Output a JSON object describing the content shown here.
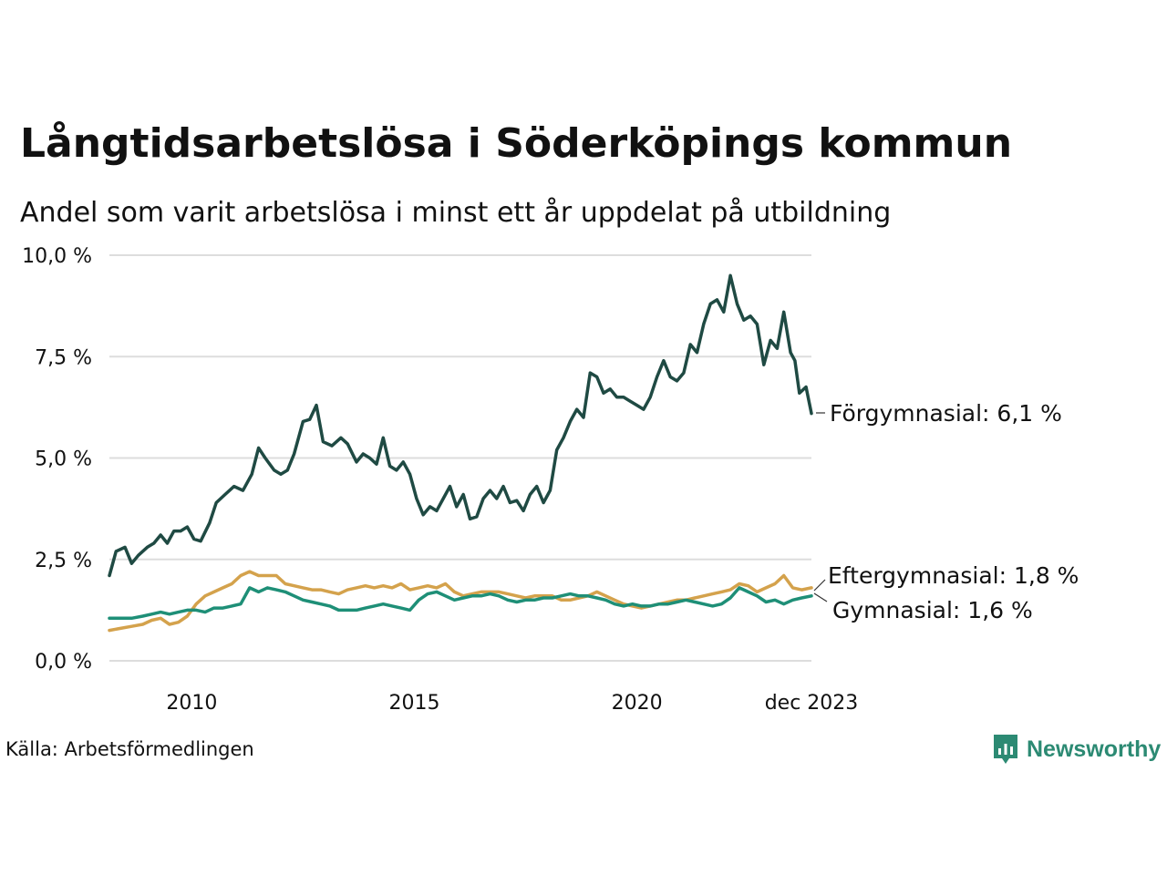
{
  "header": {
    "title": "Långtidsarbetslösa i Söderköpings kommun",
    "subtitle": "Andel som varit arbetslösa i minst ett år uppdelat på utbildning"
  },
  "footer": {
    "source": "Källa: Arbetsförmedlingen",
    "brand": "Newsworthy",
    "brand_color": "#2c8a73"
  },
  "chart_data": {
    "type": "line",
    "x_range": [
      2008.15,
      2023.92
    ],
    "ylim": [
      0,
      10
    ],
    "yticks": [
      0,
      2.5,
      5,
      7.5,
      10
    ],
    "ytick_labels": [
      "0,0 %",
      "2,5 %",
      "5,0 %",
      "7,5 %",
      "10,0 %"
    ],
    "xticks": [
      2010,
      2015,
      2020,
      2023.92
    ],
    "xtick_labels": [
      "2010",
      "2015",
      "2020",
      "dec 2023"
    ],
    "grid": true,
    "series": [
      {
        "name": "Förgymnasial",
        "label": "Förgymnasial: 6,1 %",
        "color": "#1f4a43",
        "points": [
          [
            2008.15,
            2.1
          ],
          [
            2008.3,
            2.7
          ],
          [
            2008.5,
            2.8
          ],
          [
            2008.65,
            2.4
          ],
          [
            2008.8,
            2.6
          ],
          [
            2009.0,
            2.8
          ],
          [
            2009.15,
            2.9
          ],
          [
            2009.3,
            3.1
          ],
          [
            2009.45,
            2.9
          ],
          [
            2009.6,
            3.2
          ],
          [
            2009.75,
            3.2
          ],
          [
            2009.9,
            3.3
          ],
          [
            2010.05,
            3.0
          ],
          [
            2010.2,
            2.95
          ],
          [
            2010.4,
            3.4
          ],
          [
            2010.55,
            3.9
          ],
          [
            2010.75,
            4.1
          ],
          [
            2010.95,
            4.3
          ],
          [
            2011.15,
            4.2
          ],
          [
            2011.35,
            4.6
          ],
          [
            2011.5,
            5.25
          ],
          [
            2011.65,
            5.0
          ],
          [
            2011.85,
            4.7
          ],
          [
            2012.0,
            4.6
          ],
          [
            2012.15,
            4.7
          ],
          [
            2012.3,
            5.1
          ],
          [
            2012.5,
            5.9
          ],
          [
            2012.65,
            5.95
          ],
          [
            2012.8,
            6.3
          ],
          [
            2012.95,
            5.4
          ],
          [
            2013.15,
            5.3
          ],
          [
            2013.35,
            5.5
          ],
          [
            2013.5,
            5.35
          ],
          [
            2013.7,
            4.9
          ],
          [
            2013.85,
            5.1
          ],
          [
            2014.0,
            5.0
          ],
          [
            2014.15,
            4.85
          ],
          [
            2014.3,
            5.5
          ],
          [
            2014.45,
            4.8
          ],
          [
            2014.6,
            4.7
          ],
          [
            2014.75,
            4.9
          ],
          [
            2014.9,
            4.6
          ],
          [
            2015.05,
            4.0
          ],
          [
            2015.2,
            3.6
          ],
          [
            2015.35,
            3.8
          ],
          [
            2015.5,
            3.7
          ],
          [
            2015.65,
            4.0
          ],
          [
            2015.8,
            4.3
          ],
          [
            2015.95,
            3.8
          ],
          [
            2016.1,
            4.1
          ],
          [
            2016.25,
            3.5
          ],
          [
            2016.4,
            3.55
          ],
          [
            2016.55,
            4.0
          ],
          [
            2016.7,
            4.2
          ],
          [
            2016.85,
            4.0
          ],
          [
            2017.0,
            4.3
          ],
          [
            2017.15,
            3.9
          ],
          [
            2017.3,
            3.95
          ],
          [
            2017.45,
            3.7
          ],
          [
            2017.6,
            4.1
          ],
          [
            2017.75,
            4.3
          ],
          [
            2017.9,
            3.9
          ],
          [
            2018.05,
            4.2
          ],
          [
            2018.2,
            5.2
          ],
          [
            2018.35,
            5.5
          ],
          [
            2018.5,
            5.9
          ],
          [
            2018.65,
            6.2
          ],
          [
            2018.8,
            6.0
          ],
          [
            2018.95,
            7.1
          ],
          [
            2019.1,
            7.0
          ],
          [
            2019.25,
            6.6
          ],
          [
            2019.4,
            6.7
          ],
          [
            2019.55,
            6.5
          ],
          [
            2019.7,
            6.5
          ],
          [
            2019.85,
            6.4
          ],
          [
            2020.0,
            6.3
          ],
          [
            2020.15,
            6.2
          ],
          [
            2020.3,
            6.5
          ],
          [
            2020.45,
            7.0
          ],
          [
            2020.6,
            7.4
          ],
          [
            2020.75,
            7.0
          ],
          [
            2020.9,
            6.9
          ],
          [
            2021.05,
            7.1
          ],
          [
            2021.2,
            7.8
          ],
          [
            2021.35,
            7.6
          ],
          [
            2021.5,
            8.3
          ],
          [
            2021.65,
            8.8
          ],
          [
            2021.8,
            8.9
          ],
          [
            2021.95,
            8.6
          ],
          [
            2022.1,
            9.5
          ],
          [
            2022.25,
            8.8
          ],
          [
            2022.4,
            8.4
          ],
          [
            2022.55,
            8.5
          ],
          [
            2022.7,
            8.3
          ],
          [
            2022.85,
            7.3
          ],
          [
            2023.0,
            7.9
          ],
          [
            2023.15,
            7.7
          ],
          [
            2023.3,
            8.6
          ],
          [
            2023.45,
            7.6
          ],
          [
            2023.55,
            7.4
          ],
          [
            2023.65,
            6.6
          ],
          [
            2023.8,
            6.75
          ],
          [
            2023.92,
            6.1
          ]
        ]
      },
      {
        "name": "Eftergymnasial",
        "label": "Eftergymnasial: 1,8 %",
        "color": "#d4a24c",
        "points": [
          [
            2008.15,
            0.75
          ],
          [
            2008.4,
            0.8
          ],
          [
            2008.65,
            0.85
          ],
          [
            2008.9,
            0.9
          ],
          [
            2009.1,
            1.0
          ],
          [
            2009.3,
            1.05
          ],
          [
            2009.5,
            0.9
          ],
          [
            2009.7,
            0.95
          ],
          [
            2009.9,
            1.1
          ],
          [
            2010.1,
            1.4
          ],
          [
            2010.3,
            1.6
          ],
          [
            2010.5,
            1.7
          ],
          [
            2010.7,
            1.8
          ],
          [
            2010.9,
            1.9
          ],
          [
            2011.1,
            2.1
          ],
          [
            2011.3,
            2.2
          ],
          [
            2011.5,
            2.1
          ],
          [
            2011.7,
            2.1
          ],
          [
            2011.9,
            2.1
          ],
          [
            2012.1,
            1.9
          ],
          [
            2012.3,
            1.85
          ],
          [
            2012.5,
            1.8
          ],
          [
            2012.7,
            1.75
          ],
          [
            2012.9,
            1.75
          ],
          [
            2013.1,
            1.7
          ],
          [
            2013.3,
            1.65
          ],
          [
            2013.5,
            1.75
          ],
          [
            2013.7,
            1.8
          ],
          [
            2013.9,
            1.85
          ],
          [
            2014.1,
            1.8
          ],
          [
            2014.3,
            1.85
          ],
          [
            2014.5,
            1.8
          ],
          [
            2014.7,
            1.9
          ],
          [
            2014.9,
            1.75
          ],
          [
            2015.1,
            1.8
          ],
          [
            2015.3,
            1.85
          ],
          [
            2015.5,
            1.8
          ],
          [
            2015.7,
            1.9
          ],
          [
            2015.9,
            1.7
          ],
          [
            2016.1,
            1.6
          ],
          [
            2016.3,
            1.65
          ],
          [
            2016.5,
            1.7
          ],
          [
            2016.7,
            1.7
          ],
          [
            2016.9,
            1.7
          ],
          [
            2017.1,
            1.65
          ],
          [
            2017.3,
            1.6
          ],
          [
            2017.5,
            1.55
          ],
          [
            2017.7,
            1.6
          ],
          [
            2017.9,
            1.6
          ],
          [
            2018.1,
            1.6
          ],
          [
            2018.3,
            1.5
          ],
          [
            2018.5,
            1.5
          ],
          [
            2018.7,
            1.55
          ],
          [
            2018.9,
            1.6
          ],
          [
            2019.1,
            1.7
          ],
          [
            2019.3,
            1.6
          ],
          [
            2019.5,
            1.5
          ],
          [
            2019.7,
            1.4
          ],
          [
            2019.9,
            1.35
          ],
          [
            2020.1,
            1.3
          ],
          [
            2020.3,
            1.35
          ],
          [
            2020.5,
            1.4
          ],
          [
            2020.7,
            1.45
          ],
          [
            2020.9,
            1.5
          ],
          [
            2021.1,
            1.5
          ],
          [
            2021.3,
            1.55
          ],
          [
            2021.5,
            1.6
          ],
          [
            2021.7,
            1.65
          ],
          [
            2021.9,
            1.7
          ],
          [
            2022.1,
            1.75
          ],
          [
            2022.3,
            1.9
          ],
          [
            2022.5,
            1.85
          ],
          [
            2022.7,
            1.7
          ],
          [
            2022.9,
            1.8
          ],
          [
            2023.1,
            1.9
          ],
          [
            2023.3,
            2.1
          ],
          [
            2023.5,
            1.8
          ],
          [
            2023.7,
            1.75
          ],
          [
            2023.92,
            1.8
          ]
        ]
      },
      {
        "name": "Gymnasial",
        "label": "Gymnasial: 1,6 %",
        "color": "#1e8f77",
        "points": [
          [
            2008.15,
            1.05
          ],
          [
            2008.4,
            1.05
          ],
          [
            2008.65,
            1.05
          ],
          [
            2008.9,
            1.1
          ],
          [
            2009.1,
            1.15
          ],
          [
            2009.3,
            1.2
          ],
          [
            2009.5,
            1.15
          ],
          [
            2009.7,
            1.2
          ],
          [
            2009.9,
            1.25
          ],
          [
            2010.1,
            1.25
          ],
          [
            2010.3,
            1.2
          ],
          [
            2010.5,
            1.3
          ],
          [
            2010.7,
            1.3
          ],
          [
            2010.9,
            1.35
          ],
          [
            2011.1,
            1.4
          ],
          [
            2011.3,
            1.8
          ],
          [
            2011.5,
            1.7
          ],
          [
            2011.7,
            1.8
          ],
          [
            2011.9,
            1.75
          ],
          [
            2012.1,
            1.7
          ],
          [
            2012.3,
            1.6
          ],
          [
            2012.5,
            1.5
          ],
          [
            2012.7,
            1.45
          ],
          [
            2012.9,
            1.4
          ],
          [
            2013.1,
            1.35
          ],
          [
            2013.3,
            1.25
          ],
          [
            2013.5,
            1.25
          ],
          [
            2013.7,
            1.25
          ],
          [
            2013.9,
            1.3
          ],
          [
            2014.1,
            1.35
          ],
          [
            2014.3,
            1.4
          ],
          [
            2014.5,
            1.35
          ],
          [
            2014.7,
            1.3
          ],
          [
            2014.9,
            1.25
          ],
          [
            2015.1,
            1.5
          ],
          [
            2015.3,
            1.65
          ],
          [
            2015.5,
            1.7
          ],
          [
            2015.7,
            1.6
          ],
          [
            2015.9,
            1.5
          ],
          [
            2016.1,
            1.55
          ],
          [
            2016.3,
            1.6
          ],
          [
            2016.5,
            1.6
          ],
          [
            2016.7,
            1.65
          ],
          [
            2016.9,
            1.6
          ],
          [
            2017.1,
            1.5
          ],
          [
            2017.3,
            1.45
          ],
          [
            2017.5,
            1.5
          ],
          [
            2017.7,
            1.5
          ],
          [
            2017.9,
            1.55
          ],
          [
            2018.1,
            1.55
          ],
          [
            2018.3,
            1.6
          ],
          [
            2018.5,
            1.65
          ],
          [
            2018.7,
            1.6
          ],
          [
            2018.9,
            1.6
          ],
          [
            2019.1,
            1.55
          ],
          [
            2019.3,
            1.5
          ],
          [
            2019.5,
            1.4
          ],
          [
            2019.7,
            1.35
          ],
          [
            2019.9,
            1.4
          ],
          [
            2020.1,
            1.35
          ],
          [
            2020.3,
            1.35
          ],
          [
            2020.5,
            1.4
          ],
          [
            2020.7,
            1.4
          ],
          [
            2020.9,
            1.45
          ],
          [
            2021.1,
            1.5
          ],
          [
            2021.3,
            1.45
          ],
          [
            2021.5,
            1.4
          ],
          [
            2021.7,
            1.35
          ],
          [
            2021.9,
            1.4
          ],
          [
            2022.1,
            1.55
          ],
          [
            2022.3,
            1.8
          ],
          [
            2022.5,
            1.7
          ],
          [
            2022.7,
            1.6
          ],
          [
            2022.9,
            1.45
          ],
          [
            2023.1,
            1.5
          ],
          [
            2023.3,
            1.4
          ],
          [
            2023.5,
            1.5
          ],
          [
            2023.7,
            1.55
          ],
          [
            2023.92,
            1.6
          ]
        ]
      }
    ]
  }
}
